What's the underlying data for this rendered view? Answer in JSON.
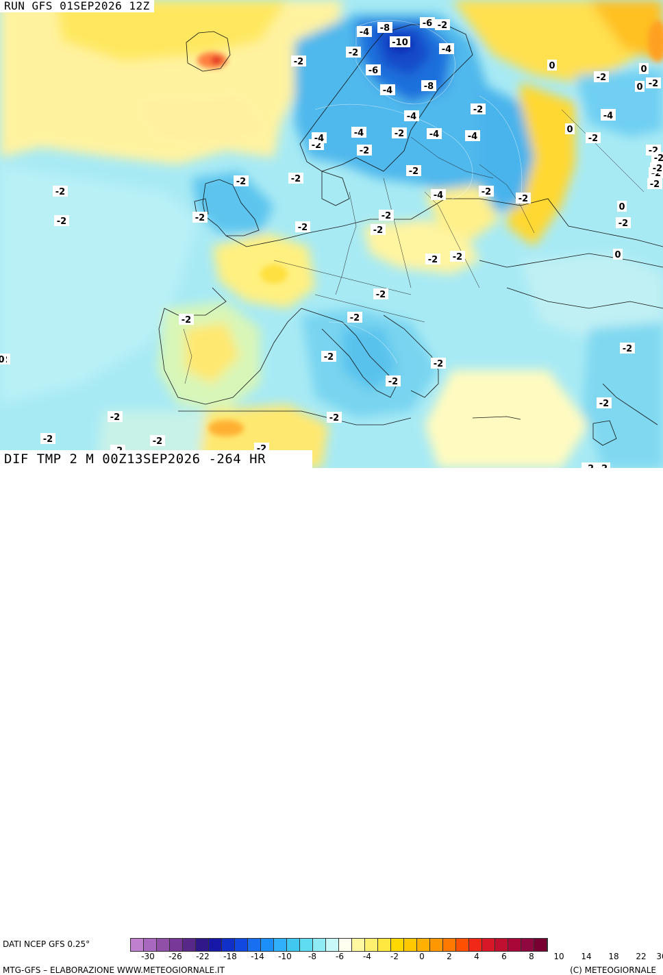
{
  "header": {
    "run_title": "RUN GFS 01SEP2026 12Z"
  },
  "field": {
    "title": "DIF TMP 2 M 00Z13SEP2026 -264 HR"
  },
  "legend": {
    "source": "DATI NCEP GFS 0.25°",
    "colors": [
      "#c080d0",
      "#a868c0",
      "#9050a8",
      "#783898",
      "#582888",
      "#30188a",
      "#1818a8",
      "#1030c8",
      "#1048e0",
      "#1870f0",
      "#1c90f8",
      "#30b0f8",
      "#40c8f0",
      "#60dcf0",
      "#90ecf4",
      "#c8f8f8",
      "#fffff0",
      "#fff8a0",
      "#fff070",
      "#ffe840",
      "#ffd800",
      "#ffc800",
      "#ffb000",
      "#ff9800",
      "#ff7800",
      "#ff5000",
      "#f02818",
      "#d81828",
      "#c01030",
      "#a80838",
      "#900840",
      "#780030"
    ],
    "ticks": [
      "-30",
      "-26",
      "-22",
      "-18",
      "-14",
      "-10",
      "-8",
      "-6",
      "-4",
      "-2",
      "0",
      "2",
      "4",
      "6",
      "8",
      "10",
      "14",
      "18",
      "22",
      "30"
    ]
  },
  "credits": {
    "left": "MTG-GFS – ELABORAZIONE WWW.METEOGIORNALE.IT",
    "right": "(C) METEOGIORNALE"
  },
  "map_labels": [
    {
      "t": "-4"
    },
    {
      "t": "-8"
    },
    {
      "t": "-6"
    },
    {
      "t": "-2"
    },
    {
      "t": "-10"
    },
    {
      "t": "-4"
    },
    {
      "t": "-2"
    },
    {
      "t": "-2"
    },
    {
      "t": "-6"
    },
    {
      "t": "-4"
    },
    {
      "t": "-8"
    },
    {
      "t": "0"
    },
    {
      "t": "-2"
    },
    {
      "t": "0"
    },
    {
      "t": "-2"
    },
    {
      "t": "-2"
    },
    {
      "t": "-4"
    },
    {
      "t": "-2"
    },
    {
      "t": "-4"
    },
    {
      "t": "-4"
    },
    {
      "t": "-2"
    },
    {
      "t": "-4"
    },
    {
      "t": "-2"
    },
    {
      "t": "-4"
    },
    {
      "t": "-2"
    },
    {
      "t": "0"
    },
    {
      "t": "-2"
    },
    {
      "t": "-2"
    },
    {
      "t": "-2"
    },
    {
      "t": "-2"
    },
    {
      "t": "-2"
    },
    {
      "t": "-2"
    },
    {
      "t": "-2"
    },
    {
      "t": "-2"
    },
    {
      "t": "-4"
    },
    {
      "t": "-2"
    },
    {
      "t": "-2"
    },
    {
      "t": "-2"
    },
    {
      "t": "0"
    },
    {
      "t": "-2"
    },
    {
      "t": "-2"
    },
    {
      "t": "-2"
    },
    {
      "t": "-2"
    },
    {
      "t": "0"
    },
    {
      "t": "-2"
    },
    {
      "t": "-2"
    },
    {
      "t": "-2"
    },
    {
      "t": "-2"
    },
    {
      "t": "-2"
    },
    {
      "t": "-2"
    },
    {
      "t": "-2"
    },
    {
      "t": "-2"
    },
    {
      "t": "-2"
    },
    {
      "t": "-2"
    },
    {
      "t": "-2"
    },
    {
      "t": "-2"
    },
    {
      "t": "-2"
    },
    {
      "t": "-2"
    },
    {
      "t": "-2"
    },
    {
      "t": "-2"
    },
    {
      "t": "0"
    },
    {
      "t": "0"
    },
    {
      "t": "-2"
    },
    {
      "t": "-2"
    },
    {
      "t": "-2"
    },
    {
      "t": "-4"
    },
    {
      "t": "-2"
    },
    {
      "t": "-2"
    },
    {
      "t": "-2"
    }
  ]
}
